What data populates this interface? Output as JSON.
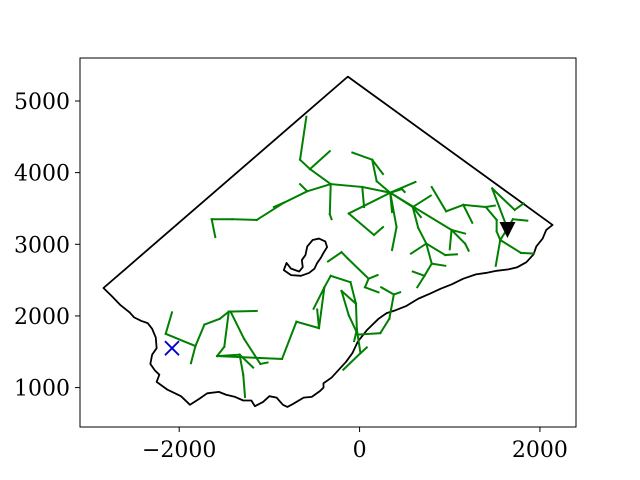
{
  "chart_data": {
    "type": "line",
    "title": "",
    "xlabel": "",
    "ylabel": "",
    "xlim": [
      -3100,
      2400
    ],
    "ylim": [
      450,
      5600
    ],
    "grid": false,
    "legend": "none",
    "x_ticks": [
      {
        "value": -2000,
        "label": "−2000"
      },
      {
        "value": 0,
        "label": "0"
      },
      {
        "value": 2000,
        "label": "2000"
      }
    ],
    "y_ticks": [
      {
        "value": 1000,
        "label": "1000"
      },
      {
        "value": 2000,
        "label": "2000"
      },
      {
        "value": 3000,
        "label": "3000"
      },
      {
        "value": 4000,
        "label": "4000"
      },
      {
        "value": 5000,
        "label": "5000"
      }
    ],
    "colors": {
      "boundary": "#000000",
      "network": "#008000",
      "source_marker": "#0000cc",
      "target_marker": "#000000"
    },
    "boundary": [
      [
        -2840,
        2390
      ],
      [
        -2750,
        2280
      ],
      [
        -2650,
        2150
      ],
      [
        -2550,
        2050
      ],
      [
        -2500,
        1980
      ],
      [
        -2420,
        1930
      ],
      [
        -2350,
        1900
      ],
      [
        -2300,
        1820
      ],
      [
        -2260,
        1700
      ],
      [
        -2250,
        1550
      ],
      [
        -2300,
        1460
      ],
      [
        -2320,
        1330
      ],
      [
        -2270,
        1240
      ],
      [
        -2220,
        1180
      ],
      [
        -2250,
        1080
      ],
      [
        -2130,
        970
      ],
      [
        -1980,
        880
      ],
      [
        -1880,
        760
      ],
      [
        -1770,
        850
      ],
      [
        -1690,
        920
      ],
      [
        -1560,
        940
      ],
      [
        -1480,
        900
      ],
      [
        -1380,
        870
      ],
      [
        -1290,
        820
      ],
      [
        -1200,
        820
      ],
      [
        -1160,
        740
      ],
      [
        -1070,
        800
      ],
      [
        -1000,
        880
      ],
      [
        -920,
        860
      ],
      [
        -850,
        760
      ],
      [
        -800,
        730
      ],
      [
        -740,
        770
      ],
      [
        -620,
        860
      ],
      [
        -530,
        870
      ],
      [
        -440,
        950
      ],
      [
        -400,
        1000
      ],
      [
        -400,
        1060
      ],
      [
        -310,
        1140
      ],
      [
        -230,
        1250
      ],
      [
        -150,
        1360
      ],
      [
        -80,
        1480
      ],
      [
        -20,
        1640
      ],
      [
        80,
        1800
      ],
      [
        210,
        1960
      ],
      [
        300,
        2040
      ],
      [
        400,
        2080
      ],
      [
        520,
        2140
      ],
      [
        650,
        2240
      ],
      [
        780,
        2310
      ],
      [
        900,
        2380
      ],
      [
        1020,
        2440
      ],
      [
        1150,
        2520
      ],
      [
        1290,
        2580
      ],
      [
        1400,
        2600
      ],
      [
        1520,
        2630
      ],
      [
        1650,
        2650
      ],
      [
        1750,
        2680
      ],
      [
        1850,
        2750
      ],
      [
        1930,
        2860
      ],
      [
        1960,
        2970
      ],
      [
        2030,
        3080
      ],
      [
        2070,
        3200
      ],
      [
        2140,
        3270
      ],
      [
        -130,
        5340
      ],
      [
        -2840,
        2390
      ]
    ],
    "hole": [
      [
        -810,
        2740
      ],
      [
        -760,
        2660
      ],
      [
        -670,
        2620
      ],
      [
        -630,
        2680
      ],
      [
        -640,
        2780
      ],
      [
        -600,
        2850
      ],
      [
        -580,
        2970
      ],
      [
        -520,
        3060
      ],
      [
        -450,
        3080
      ],
      [
        -380,
        3040
      ],
      [
        -360,
        2960
      ],
      [
        -400,
        2880
      ],
      [
        -430,
        2810
      ],
      [
        -470,
        2740
      ],
      [
        -500,
        2660
      ],
      [
        -560,
        2600
      ],
      [
        -650,
        2560
      ],
      [
        -760,
        2570
      ],
      [
        -840,
        2640
      ],
      [
        -810,
        2740
      ]
    ],
    "network_segments": [
      [
        [
          -2150,
          1750
        ],
        [
          -2080,
          2050
        ]
      ],
      [
        [
          -2150,
          1750
        ],
        [
          -1820,
          1580
        ]
      ],
      [
        [
          -1820,
          1580
        ],
        [
          -1720,
          1880
        ]
      ],
      [
        [
          -1820,
          1580
        ],
        [
          -1870,
          1340
        ]
      ],
      [
        [
          -1720,
          1880
        ],
        [
          -1550,
          1960
        ]
      ],
      [
        [
          -1550,
          1960
        ],
        [
          -1450,
          2060
        ]
      ],
      [
        [
          -1450,
          2060
        ],
        [
          -1140,
          2070
        ]
      ],
      [
        [
          -1430,
          2060
        ],
        [
          -1280,
          1680
        ]
      ],
      [
        [
          -1280,
          1680
        ],
        [
          -1100,
          1330
        ]
      ],
      [
        [
          -1100,
          1330
        ],
        [
          -1020,
          1350
        ]
      ],
      [
        [
          -1450,
          2060
        ],
        [
          -1500,
          1570
        ]
      ],
      [
        [
          -1500,
          1570
        ],
        [
          -1580,
          1440
        ]
      ],
      [
        [
          -1580,
          1440
        ],
        [
          -1330,
          1460
        ]
      ],
      [
        [
          -1330,
          1460
        ],
        [
          -1290,
          1180
        ]
      ],
      [
        [
          -1330,
          1460
        ],
        [
          -1180,
          1280
        ]
      ],
      [
        [
          -1290,
          1180
        ],
        [
          -1270,
          870
        ]
      ],
      [
        [
          -1580,
          1440
        ],
        [
          -860,
          1400
        ]
      ],
      [
        [
          -860,
          1400
        ],
        [
          -700,
          1920
        ]
      ],
      [
        [
          -700,
          1920
        ],
        [
          -450,
          1830
        ]
      ],
      [
        [
          -450,
          1830
        ],
        [
          -470,
          2090
        ]
      ],
      [
        [
          -450,
          1830
        ],
        [
          -390,
          2400
        ]
      ],
      [
        [
          -390,
          2400
        ],
        [
          -510,
          2100
        ]
      ],
      [
        [
          -390,
          2400
        ],
        [
          -320,
          2560
        ]
      ],
      [
        [
          -320,
          2560
        ],
        [
          -100,
          2470
        ]
      ],
      [
        [
          -100,
          2470
        ],
        [
          -40,
          2170
        ]
      ],
      [
        [
          -40,
          2170
        ],
        [
          -30,
          1810
        ]
      ],
      [
        [
          -30,
          1810
        ],
        [
          -60,
          1650
        ]
      ],
      [
        [
          -30,
          1810
        ],
        [
          10,
          1480
        ]
      ],
      [
        [
          10,
          1480
        ],
        [
          80,
          1560
        ]
      ],
      [
        [
          10,
          1480
        ],
        [
          -180,
          1250
        ]
      ],
      [
        [
          -40,
          2170
        ],
        [
          -200,
          2350
        ]
      ],
      [
        [
          -200,
          2350
        ],
        [
          -120,
          2010
        ]
      ],
      [
        [
          -120,
          2010
        ],
        [
          -20,
          1740
        ]
      ],
      [
        [
          -20,
          1740
        ],
        [
          230,
          1760
        ]
      ],
      [
        [
          230,
          1760
        ],
        [
          330,
          1960
        ]
      ],
      [
        [
          330,
          1960
        ],
        [
          380,
          2300
        ]
      ],
      [
        [
          380,
          2300
        ],
        [
          450,
          2330
        ]
      ],
      [
        [
          380,
          2300
        ],
        [
          240,
          2400
        ]
      ],
      [
        [
          -1640,
          3350
        ],
        [
          -1410,
          3350
        ]
      ],
      [
        [
          -1640,
          3350
        ],
        [
          -1600,
          3100
        ]
      ],
      [
        [
          -1410,
          3350
        ],
        [
          -1140,
          3340
        ]
      ],
      [
        [
          -1140,
          3340
        ],
        [
          -840,
          3580
        ]
      ],
      [
        [
          -840,
          3580
        ],
        [
          -580,
          3740
        ]
      ],
      [
        [
          -840,
          3580
        ],
        [
          -950,
          3520
        ]
      ],
      [
        [
          -580,
          3740
        ],
        [
          -660,
          3840
        ]
      ],
      [
        [
          -580,
          3740
        ],
        [
          -320,
          3840
        ]
      ],
      [
        [
          -320,
          3840
        ],
        [
          -330,
          3420
        ]
      ],
      [
        [
          -330,
          3420
        ],
        [
          -310,
          3350
        ]
      ],
      [
        [
          -320,
          3840
        ],
        [
          -550,
          4050
        ]
      ],
      [
        [
          -550,
          4050
        ],
        [
          -330,
          4300
        ]
      ],
      [
        [
          -550,
          4050
        ],
        [
          -660,
          4180
        ]
      ],
      [
        [
          -660,
          4180
        ],
        [
          -590,
          4780
        ]
      ],
      [
        [
          -320,
          3840
        ],
        [
          30,
          3800
        ]
      ],
      [
        [
          30,
          3800
        ],
        [
          50,
          3520
        ]
      ],
      [
        [
          30,
          3800
        ],
        [
          340,
          3720
        ]
      ],
      [
        [
          340,
          3720
        ],
        [
          360,
          3450
        ]
      ],
      [
        [
          340,
          3720
        ],
        [
          620,
          3870
        ]
      ],
      [
        [
          340,
          3720
        ],
        [
          190,
          3880
        ]
      ],
      [
        [
          190,
          3880
        ],
        [
          140,
          4180
        ]
      ],
      [
        [
          140,
          4180
        ],
        [
          -80,
          4280
        ]
      ],
      [
        [
          140,
          4180
        ],
        [
          260,
          3980
        ]
      ],
      [
        [
          340,
          3720
        ],
        [
          410,
          3240
        ]
      ],
      [
        [
          410,
          3240
        ],
        [
          360,
          2920
        ]
      ],
      [
        [
          340,
          3720
        ],
        [
          -120,
          3430
        ]
      ],
      [
        [
          -120,
          3430
        ],
        [
          160,
          3130
        ]
      ],
      [
        [
          160,
          3130
        ],
        [
          260,
          3240
        ]
      ],
      [
        [
          340,
          3720
        ],
        [
          590,
          3520
        ]
      ],
      [
        [
          590,
          3520
        ],
        [
          680,
          3380
        ]
      ],
      [
        [
          590,
          3520
        ],
        [
          650,
          3230
        ]
      ],
      [
        [
          650,
          3230
        ],
        [
          740,
          3010
        ]
      ],
      [
        [
          740,
          3010
        ],
        [
          570,
          2870
        ]
      ],
      [
        [
          740,
          3010
        ],
        [
          800,
          2730
        ]
      ],
      [
        [
          800,
          2730
        ],
        [
          950,
          2700
        ]
      ],
      [
        [
          800,
          2730
        ],
        [
          720,
          2560
        ]
      ],
      [
        [
          720,
          2560
        ],
        [
          590,
          2620
        ]
      ],
      [
        [
          720,
          2560
        ],
        [
          640,
          2400
        ]
      ],
      [
        [
          740,
          3010
        ],
        [
          950,
          2850
        ]
      ],
      [
        [
          950,
          2850
        ],
        [
          1080,
          2860
        ]
      ],
      [
        [
          340,
          3720
        ],
        [
          1020,
          3200
        ]
      ],
      [
        [
          1020,
          3200
        ],
        [
          1170,
          3150
        ]
      ],
      [
        [
          1020,
          3200
        ],
        [
          1170,
          3010
        ]
      ],
      [
        [
          1170,
          3010
        ],
        [
          1210,
          2910
        ]
      ],
      [
        [
          1020,
          3200
        ],
        [
          1000,
          2930
        ]
      ],
      [
        [
          800,
          3800
        ],
        [
          960,
          3460
        ]
      ],
      [
        [
          960,
          3460
        ],
        [
          1150,
          3550
        ]
      ],
      [
        [
          1150,
          3550
        ],
        [
          1250,
          3300
        ]
      ],
      [
        [
          1150,
          3550
        ],
        [
          1400,
          3520
        ]
      ],
      [
        [
          1400,
          3520
        ],
        [
          1500,
          3540
        ]
      ],
      [
        [
          1400,
          3520
        ],
        [
          1520,
          3340
        ]
      ],
      [
        [
          1520,
          3340
        ],
        [
          1520,
          3180
        ]
      ],
      [
        [
          1520,
          3180
        ],
        [
          1560,
          3060
        ]
      ],
      [
        [
          1560,
          3060
        ],
        [
          1510,
          2700
        ]
      ],
      [
        [
          1560,
          3060
        ],
        [
          1790,
          2880
        ]
      ],
      [
        [
          1790,
          2880
        ],
        [
          1930,
          2870
        ]
      ],
      [
        [
          1560,
          3060
        ],
        [
          1640,
          3220
        ]
      ],
      [
        [
          1640,
          3220
        ],
        [
          1700,
          3350
        ]
      ],
      [
        [
          1700,
          3350
        ],
        [
          1860,
          3330
        ]
      ],
      [
        [
          1640,
          3220
        ],
        [
          1470,
          3780
        ]
      ],
      [
        [
          1470,
          3780
        ],
        [
          1720,
          3480
        ]
      ],
      [
        [
          1720,
          3480
        ],
        [
          1820,
          3570
        ]
      ],
      [
        [
          -350,
          2760
        ],
        [
          -200,
          2890
        ]
      ],
      [
        [
          -200,
          2890
        ],
        [
          -130,
          2800
        ]
      ],
      [
        [
          -130,
          2800
        ],
        [
          100,
          2520
        ]
      ],
      [
        [
          100,
          2520
        ],
        [
          200,
          2570
        ]
      ],
      [
        [
          100,
          2520
        ],
        [
          60,
          2400
        ]
      ],
      [
        [
          60,
          2400
        ],
        [
          210,
          2330
        ]
      ],
      [
        [
          340,
          3720
        ],
        [
          470,
          3770
        ]
      ],
      [
        [
          470,
          3770
        ],
        [
          500,
          3730
        ]
      ],
      [
        [
          590,
          3520
        ],
        [
          790,
          3680
        ]
      ]
    ],
    "markers": [
      {
        "name": "source",
        "shape": "x",
        "x": -2080,
        "y": 1550
      },
      {
        "name": "target",
        "shape": "triangle-down",
        "x": 1640,
        "y": 3200
      }
    ]
  }
}
